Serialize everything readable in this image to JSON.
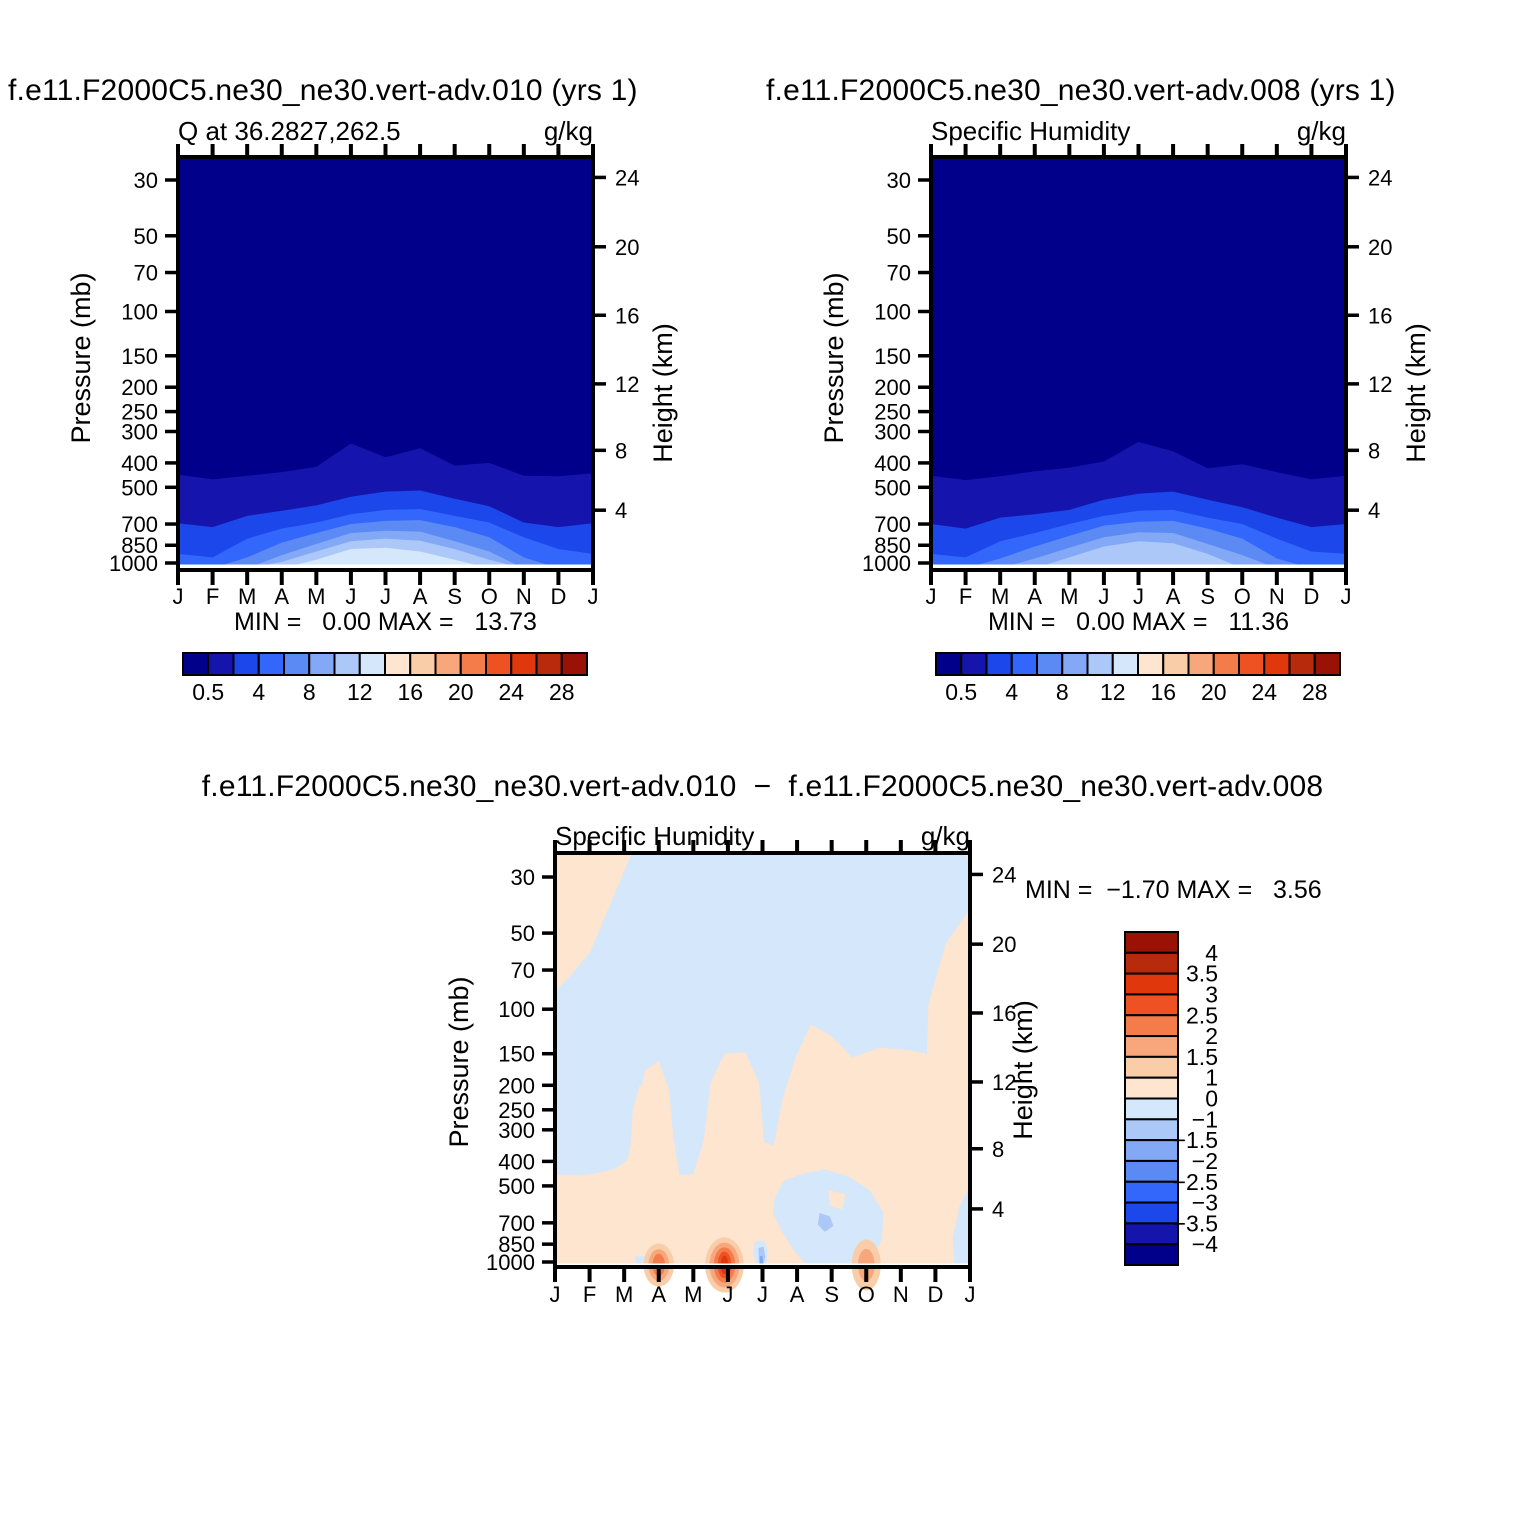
{
  "titles": {
    "top_left": "f.e11.F2000C5.ne30_ne30.vert-adv.010 (yrs 1)",
    "top_right": "f.e11.F2000C5.ne30_ne30.vert-adv.008 (yrs 1)",
    "bottom": "f.e11.F2000C5.ne30_ne30.vert-adv.010  −  f.e11.F2000C5.ne30_ne30.vert-adv.008"
  },
  "palette": [
    "#00008B",
    "#1515AE",
    "#1C47EB",
    "#3366FA",
    "#5C8AF5",
    "#83A9F6",
    "#ABC8F8",
    "#D5E7FA",
    "#FDE5CF",
    "#FACDA9",
    "#F7A77B",
    "#F47C4B",
    "#EF5222",
    "#E0380C",
    "#B72A0C",
    "#9A1106"
  ],
  "chart_data": [
    {
      "id": "top-left",
      "type": "filled-contour",
      "title": "Q at 36.2827,262.5",
      "units": "g/kg",
      "stats": {
        "min_label": "MIN =",
        "min": "0.00",
        "max_label": "MAX =",
        "max": "13.73"
      },
      "x_axis": {
        "months": [
          "J",
          "F",
          "M",
          "A",
          "M",
          "J",
          "J",
          "A",
          "S",
          "O",
          "N",
          "D",
          "J"
        ]
      },
      "y_axis": {
        "label": "Pressure (mb)",
        "scale": "log",
        "ticks": [
          30,
          50,
          70,
          100,
          150,
          200,
          250,
          300,
          400,
          500,
          700,
          850,
          1000
        ]
      },
      "y2_axis": {
        "label": "Height (km)",
        "ticks": [
          24,
          20,
          16,
          12,
          8,
          4
        ],
        "tick_pressures": [
          29.3,
          55.3,
          103.5,
          194,
          356.5,
          616.6
        ]
      },
      "background_color": 0,
      "surface_mask_mb": 1000,
      "contour_levels": [
        0.5,
        2,
        4,
        6,
        8,
        10,
        12,
        14,
        16,
        18,
        20,
        22,
        24,
        26,
        28
      ],
      "bands": [
        {
          "level": 0.5,
          "color": 1,
          "top_mb": [
            445,
            465,
            450,
            435,
            415,
            335,
            380,
            350,
            410,
            400,
            450,
            452,
            440
          ]
        },
        {
          "level": 2,
          "color": 2,
          "top_mb": [
            695,
            720,
            650,
            620,
            590,
            545,
            520,
            515,
            555,
            595,
            690,
            720,
            695
          ]
        },
        {
          "level": 4,
          "color": 3,
          "top_mb": [
            920,
            950,
            800,
            730,
            690,
            640,
            615,
            610,
            650,
            690,
            790,
            880,
            920
          ]
        },
        {
          "level": 6,
          "color": 4,
          "top_mb": [
            1050,
            1050,
            950,
            830,
            760,
            700,
            680,
            675,
            720,
            790,
            950,
            1050,
            1050
          ]
        },
        {
          "level": 8,
          "color": 5,
          "top_mb": [
            1050,
            1050,
            1050,
            930,
            840,
            760,
            745,
            750,
            820,
            900,
            1050,
            1050,
            1050
          ]
        },
        {
          "level": 10,
          "color": 6,
          "top_mb": [
            1050,
            1050,
            1050,
            990,
            900,
            820,
            800,
            815,
            880,
            970,
            1050,
            1050,
            1050
          ]
        },
        {
          "level": 12,
          "color": 7,
          "top_mb": [
            1050,
            1050,
            1050,
            1050,
            970,
            880,
            870,
            900,
            970,
            1050,
            1050,
            1050,
            1050
          ]
        }
      ],
      "colorbar": {
        "orientation": "horizontal",
        "colors": [
          0,
          1,
          2,
          3,
          4,
          5,
          6,
          7,
          8,
          9,
          10,
          11,
          12,
          13,
          14,
          15
        ],
        "labels": [
          "0.5",
          "4",
          "8",
          "12",
          "16",
          "20",
          "24",
          "28"
        ],
        "label_boundaries": [
          1,
          3,
          5,
          7,
          9,
          11,
          13,
          15
        ]
      }
    },
    {
      "id": "top-right",
      "type": "filled-contour",
      "title": "Specific Humidity",
      "units": "g/kg",
      "stats": {
        "min_label": "MIN =",
        "min": "0.00",
        "max_label": "MAX =",
        "max": "11.36"
      },
      "x_axis": {
        "months": [
          "J",
          "F",
          "M",
          "A",
          "M",
          "J",
          "J",
          "A",
          "S",
          "O",
          "N",
          "D",
          "J"
        ]
      },
      "y_axis": {
        "label": "Pressure (mb)",
        "scale": "log",
        "ticks": [
          30,
          50,
          70,
          100,
          150,
          200,
          250,
          300,
          400,
          500,
          700,
          850,
          1000
        ]
      },
      "y2_axis": {
        "label": "Height (km)",
        "ticks": [
          24,
          20,
          16,
          12,
          8,
          4
        ],
        "tick_pressures": [
          29.3,
          55.3,
          103.5,
          194,
          356.5,
          616.6
        ]
      },
      "background_color": 0,
      "surface_mask_mb": 1000,
      "contour_levels": [
        0.5,
        2,
        4,
        6,
        8,
        10,
        12,
        14,
        16,
        18,
        20,
        22,
        24,
        26,
        28
      ],
      "bands": [
        {
          "level": 0.5,
          "color": 1,
          "top_mb": [
            450,
            468,
            452,
            432,
            418,
            395,
            330,
            360,
            420,
            405,
            435,
            465,
            450
          ]
        },
        {
          "level": 2,
          "color": 2,
          "top_mb": [
            700,
            730,
            660,
            640,
            615,
            560,
            530,
            520,
            560,
            600,
            660,
            720,
            700
          ]
        },
        {
          "level": 4,
          "color": 3,
          "top_mb": [
            920,
            950,
            820,
            760,
            700,
            650,
            620,
            615,
            660,
            700,
            800,
            900,
            920
          ]
        },
        {
          "level": 6,
          "color": 4,
          "top_mb": [
            1050,
            1050,
            960,
            860,
            780,
            710,
            685,
            680,
            730,
            800,
            960,
            1050,
            1050
          ]
        },
        {
          "level": 8,
          "color": 5,
          "top_mb": [
            1050,
            1050,
            1050,
            960,
            870,
            790,
            755,
            760,
            840,
            930,
            1050,
            1050,
            1050
          ]
        },
        {
          "level": 10,
          "color": 6,
          "top_mb": [
            1050,
            1050,
            1050,
            1050,
            950,
            860,
            820,
            835,
            920,
            1050,
            1050,
            1050,
            1050
          ]
        }
      ],
      "colorbar": {
        "orientation": "horizontal",
        "colors": [
          0,
          1,
          2,
          3,
          4,
          5,
          6,
          7,
          8,
          9,
          10,
          11,
          12,
          13,
          14,
          15
        ],
        "labels": [
          "0.5",
          "4",
          "8",
          "12",
          "16",
          "20",
          "24",
          "28"
        ],
        "label_boundaries": [
          1,
          3,
          5,
          7,
          9,
          11,
          13,
          15
        ]
      }
    },
    {
      "id": "difference",
      "type": "filled-contour",
      "title": "Specific Humidity",
      "units": "g/kg",
      "stats": {
        "min_label": "MIN =",
        "min": "−1.70",
        "max_label": "MAX =",
        "max": "3.56"
      },
      "x_axis": {
        "months": [
          "J",
          "F",
          "M",
          "A",
          "M",
          "J",
          "J",
          "A",
          "S",
          "O",
          "N",
          "D",
          "J"
        ]
      },
      "y_axis": {
        "label": "Pressure (mb)",
        "scale": "log",
        "ticks": [
          30,
          50,
          70,
          100,
          150,
          200,
          250,
          300,
          400,
          500,
          700,
          850,
          1000
        ]
      },
      "y2_axis": {
        "label": "Height (km)",
        "ticks": [
          24,
          20,
          16,
          12,
          8,
          4
        ],
        "tick_pressures": [
          29.3,
          55.3,
          103.5,
          194,
          356.5,
          616.6
        ]
      },
      "background_color": 8,
      "surface_mask_mb": 1000,
      "contour_levels": [
        -4,
        -3.5,
        -3,
        -2.5,
        -2,
        -1.5,
        -1,
        0,
        1,
        1.5,
        2,
        2.5,
        3,
        3.5,
        4
      ],
      "regions": [
        {
          "color": 7,
          "points": [
            [
              2.2,
              24.5
            ],
            [
              11.9,
              24.5
            ],
            [
              12,
              27
            ],
            [
              12,
              40
            ],
            [
              11.3,
              55
            ],
            [
              10.8,
              95
            ],
            [
              10.75,
              150
            ],
            [
              10.2,
              145
            ],
            [
              9.4,
              142
            ],
            [
              8.6,
              155
            ],
            [
              8.0,
              128
            ],
            [
              7.4,
              115
            ],
            [
              7.0,
              150
            ],
            [
              6.6,
              220
            ],
            [
              6.32,
              345
            ],
            [
              6.05,
              335
            ],
            [
              5.9,
              195
            ],
            [
              5.5,
              148
            ],
            [
              4.9,
              150
            ],
            [
              4.5,
              195
            ],
            [
              4.3,
              330
            ],
            [
              4.0,
              450
            ],
            [
              3.6,
              455
            ],
            [
              3.42,
              320
            ],
            [
              3.3,
              210
            ],
            [
              3.0,
              160
            ],
            [
              2.6,
              175
            ],
            [
              2.35,
              260
            ],
            [
              2.1,
              395
            ],
            [
              1.7,
              430
            ],
            [
              1.2,
              445
            ],
            [
              0.7,
              455
            ],
            [
              0,
              450
            ],
            [
              0,
              85
            ],
            [
              0.4,
              75
            ],
            [
              1.0,
              60
            ]
          ]
        },
        {
          "color": 8,
          "points": [
            [
              2.45,
              200
            ],
            [
              2.9,
              230
            ],
            [
              2.8,
              380
            ],
            [
              2.45,
              430
            ],
            [
              2.2,
              330
            ],
            [
              2.25,
              250
            ]
          ]
        },
        {
          "color": 7,
          "points": [
            [
              6.35,
              560
            ],
            [
              6.6,
              480
            ],
            [
              7.1,
              450
            ],
            [
              7.8,
              430
            ],
            [
              8.5,
              460
            ],
            [
              9.1,
              520
            ],
            [
              9.5,
              640
            ],
            [
              9.45,
              820
            ],
            [
              9.2,
              950
            ],
            [
              8.9,
              1040
            ],
            [
              7.3,
              1040
            ],
            [
              6.9,
              900
            ],
            [
              6.55,
              750
            ],
            [
              6.3,
              640
            ]
          ]
        },
        {
          "color": 8,
          "points": [
            [
              7.9,
              520
            ],
            [
              8.4,
              540
            ],
            [
              8.3,
              620
            ],
            [
              7.95,
              600
            ]
          ]
        },
        {
          "color": 6,
          "points": [
            [
              7.65,
              640
            ],
            [
              7.95,
              660
            ],
            [
              8.05,
              720
            ],
            [
              7.8,
              760
            ],
            [
              7.6,
              710
            ]
          ]
        },
        {
          "color": 7,
          "points": [
            [
              5.78,
              830
            ],
            [
              6.05,
              820
            ],
            [
              6.15,
              900
            ],
            [
              6.1,
              1040
            ],
            [
              5.85,
              1040
            ],
            [
              5.72,
              920
            ]
          ]
        },
        {
          "color": 6,
          "points": [
            [
              5.88,
              880
            ],
            [
              6.03,
              870
            ],
            [
              6.08,
              950
            ],
            [
              6.02,
              1040
            ],
            [
              5.9,
              1040
            ]
          ]
        },
        {
          "color": 5,
          "points": [
            [
              5.92,
              950
            ],
            [
              6.0,
              945
            ],
            [
              6.02,
              1040
            ],
            [
              5.93,
              1040
            ]
          ]
        },
        {
          "color": 7,
          "points": [
            [
              12,
              500
            ],
            [
              12,
              1040
            ],
            [
              11.55,
              1040
            ],
            [
              11.5,
              800
            ],
            [
              11.7,
              600
            ]
          ]
        },
        {
          "color": 7,
          "points": [
            [
              2.3,
              950
            ],
            [
              2.85,
              940
            ],
            [
              2.95,
              1040
            ],
            [
              2.35,
              1040
            ]
          ]
        }
      ],
      "spots": [
        {
          "month": 3.0,
          "rings": [
            {
              "rx": 0.44,
              "top_mb": 845,
              "color": 9
            },
            {
              "rx": 0.3,
              "top_mb": 890,
              "color": 10
            },
            {
              "rx": 0.18,
              "top_mb": 928,
              "color": 11
            }
          ]
        },
        {
          "month": 4.9,
          "rings": [
            {
              "rx": 0.56,
              "top_mb": 800,
              "color": 9
            },
            {
              "rx": 0.43,
              "top_mb": 838,
              "color": 10
            },
            {
              "rx": 0.31,
              "top_mb": 875,
              "color": 11
            },
            {
              "rx": 0.2,
              "top_mb": 910,
              "color": 12
            },
            {
              "rx": 0.11,
              "top_mb": 945,
              "color": 13
            }
          ]
        },
        {
          "month": 9.0,
          "rings": [
            {
              "rx": 0.42,
              "top_mb": 815,
              "color": 9
            },
            {
              "rx": 0.24,
              "top_mb": 888,
              "color": 10
            }
          ]
        }
      ],
      "colorbar": {
        "orientation": "vertical",
        "colors": [
          15,
          14,
          13,
          12,
          11,
          10,
          9,
          8,
          7,
          6,
          5,
          4,
          3,
          2,
          1,
          0
        ],
        "labels": [
          "4",
          "3.5",
          "3",
          "2.5",
          "2",
          "1.5",
          "1",
          "0",
          "−1",
          "−1.5",
          "−2",
          "−2.5",
          "−3",
          "−3.5",
          "−4"
        ]
      }
    }
  ]
}
